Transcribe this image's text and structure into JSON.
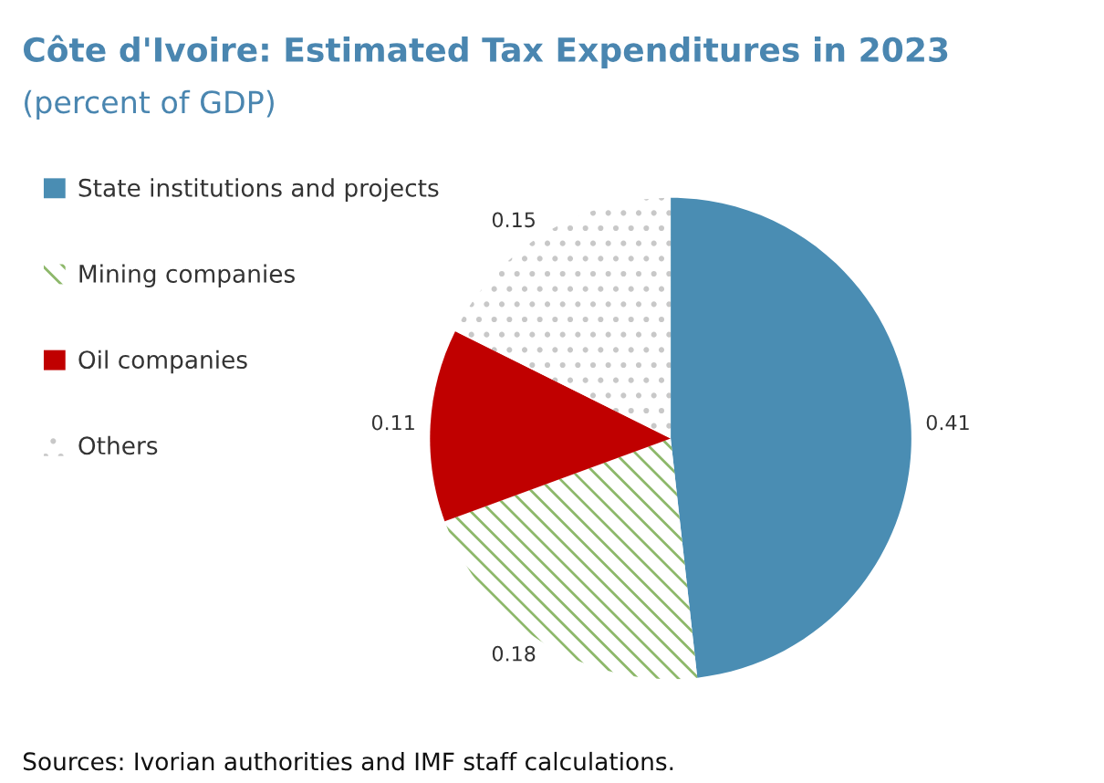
{
  "chart_data": {
    "type": "pie",
    "title": "Côte d'Ivoire: Estimated Tax Expenditures in 2023",
    "subtitle": "(percent of GDP)",
    "categories": [
      "State institutions and projects",
      "Mining companies",
      "Oil companies",
      "Others"
    ],
    "values": [
      0.41,
      0.18,
      0.11,
      0.15
    ],
    "colors": [
      "#4a8db3",
      "#8db86a",
      "#c00000",
      "#c8c8c8"
    ],
    "data_labels": true,
    "legend": "left",
    "annotations": [
      "Sources: Ivorian authorities and IMF staff calculations."
    ]
  }
}
